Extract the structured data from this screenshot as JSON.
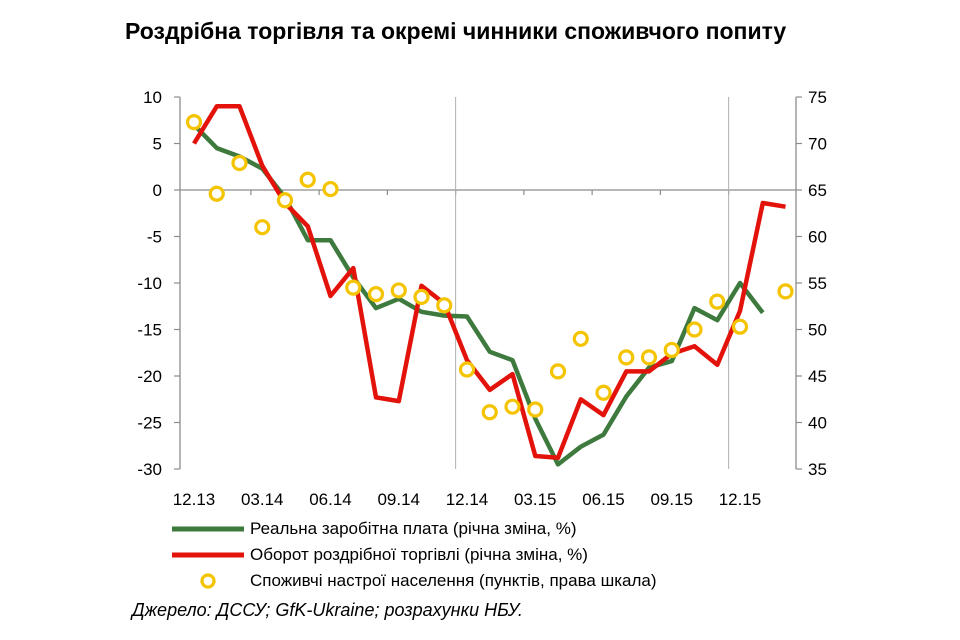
{
  "title": "Роздрібна торгівля та окремі чинники споживчого попиту",
  "source": "Джерело: ДССУ; GfK-Ukraine; розрахунки НБУ.",
  "colors": {
    "wages": "#3e7a3e",
    "retail": "#e3120b",
    "sentiment": "#f5c400"
  },
  "chart_data": {
    "type": "line",
    "x": [
      "12.13",
      "01.14",
      "02.14",
      "03.14",
      "04.14",
      "05.14",
      "06.14",
      "07.14",
      "08.14",
      "09.14",
      "10.14",
      "11.14",
      "12.14",
      "01.15",
      "02.15",
      "03.15",
      "04.15",
      "05.15",
      "06.15",
      "07.15",
      "08.15",
      "09.15",
      "10.15",
      "11.15",
      "12.15",
      "01.16",
      "02.16"
    ],
    "x_tick_labels": [
      "12.13",
      "03.14",
      "06.14",
      "09.14",
      "12.14",
      "03.15",
      "06.15",
      "09.15",
      "12.15"
    ],
    "y_left": {
      "ylim": [
        -30,
        10
      ],
      "ticks": [
        10,
        5,
        0,
        -5,
        -10,
        -15,
        -20,
        -25,
        -30
      ]
    },
    "y_right": {
      "ylim": [
        35,
        75
      ],
      "ticks": [
        75,
        70,
        65,
        60,
        55,
        50,
        45,
        40,
        35
      ]
    },
    "grid": false,
    "series": [
      {
        "name": "Реальна заробітна плата (річна зміна, %)",
        "axis": "left",
        "style": "line",
        "values": [
          7,
          4.5,
          3.6,
          2.3,
          -0.8,
          -5.4,
          -5.4,
          -9.4,
          -12.7,
          -11.7,
          -13.1,
          -13.5,
          -13.6,
          -17.4,
          -18.3,
          -24.6,
          -29.5,
          -27.6,
          -26.3,
          -22.2,
          -19.1,
          -18.4,
          -12.7,
          -14.0,
          -10.0,
          -13.2,
          null
        ]
      },
      {
        "name": "Оборот роздрібної торгівлі (річна зміна, %)",
        "axis": "left",
        "style": "line",
        "values": [
          5,
          9,
          9,
          2.6,
          -1.4,
          -3.9,
          -11.4,
          -8.4,
          -22.3,
          -22.7,
          -10.3,
          -12.2,
          -18.3,
          -21.5,
          -19.8,
          -28.6,
          -28.8,
          -22.5,
          -24.2,
          -19.5,
          -19.5,
          -17.6,
          -16.8,
          -18.8,
          -13.0,
          -1.4,
          -1.8
        ]
      },
      {
        "name": "Споживчі настрої населення (пунктів, права шкала)",
        "axis": "right",
        "style": "markers",
        "values": [
          72.3,
          64.6,
          67.9,
          61.0,
          63.9,
          66.1,
          65.1,
          54.5,
          53.8,
          54.2,
          53.5,
          52.6,
          45.7,
          41.1,
          41.7,
          41.4,
          45.5,
          49.0,
          43.2,
          47.0,
          47.0,
          47.8,
          50.0,
          53.0,
          50.3,
          null,
          54.1
        ]
      }
    ]
  }
}
